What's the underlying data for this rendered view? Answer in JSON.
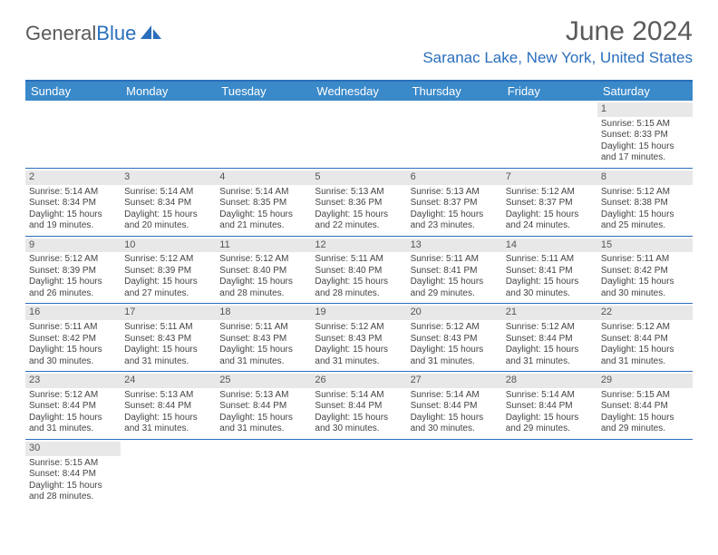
{
  "logo": {
    "part1": "General",
    "part2": "Blue"
  },
  "title": "June 2024",
  "location": "Saranac Lake, New York, United States",
  "weekdays": [
    "Sunday",
    "Monday",
    "Tuesday",
    "Wednesday",
    "Thursday",
    "Friday",
    "Saturday"
  ],
  "weeks": [
    [
      null,
      null,
      null,
      null,
      null,
      null,
      {
        "n": "1",
        "sr": "Sunrise: 5:15 AM",
        "ss": "Sunset: 8:33 PM",
        "d1": "Daylight: 15 hours",
        "d2": "and 17 minutes."
      }
    ],
    [
      {
        "n": "2",
        "sr": "Sunrise: 5:14 AM",
        "ss": "Sunset: 8:34 PM",
        "d1": "Daylight: 15 hours",
        "d2": "and 19 minutes."
      },
      {
        "n": "3",
        "sr": "Sunrise: 5:14 AM",
        "ss": "Sunset: 8:34 PM",
        "d1": "Daylight: 15 hours",
        "d2": "and 20 minutes."
      },
      {
        "n": "4",
        "sr": "Sunrise: 5:14 AM",
        "ss": "Sunset: 8:35 PM",
        "d1": "Daylight: 15 hours",
        "d2": "and 21 minutes."
      },
      {
        "n": "5",
        "sr": "Sunrise: 5:13 AM",
        "ss": "Sunset: 8:36 PM",
        "d1": "Daylight: 15 hours",
        "d2": "and 22 minutes."
      },
      {
        "n": "6",
        "sr": "Sunrise: 5:13 AM",
        "ss": "Sunset: 8:37 PM",
        "d1": "Daylight: 15 hours",
        "d2": "and 23 minutes."
      },
      {
        "n": "7",
        "sr": "Sunrise: 5:12 AM",
        "ss": "Sunset: 8:37 PM",
        "d1": "Daylight: 15 hours",
        "d2": "and 24 minutes."
      },
      {
        "n": "8",
        "sr": "Sunrise: 5:12 AM",
        "ss": "Sunset: 8:38 PM",
        "d1": "Daylight: 15 hours",
        "d2": "and 25 minutes."
      }
    ],
    [
      {
        "n": "9",
        "sr": "Sunrise: 5:12 AM",
        "ss": "Sunset: 8:39 PM",
        "d1": "Daylight: 15 hours",
        "d2": "and 26 minutes."
      },
      {
        "n": "10",
        "sr": "Sunrise: 5:12 AM",
        "ss": "Sunset: 8:39 PM",
        "d1": "Daylight: 15 hours",
        "d2": "and 27 minutes."
      },
      {
        "n": "11",
        "sr": "Sunrise: 5:12 AM",
        "ss": "Sunset: 8:40 PM",
        "d1": "Daylight: 15 hours",
        "d2": "and 28 minutes."
      },
      {
        "n": "12",
        "sr": "Sunrise: 5:11 AM",
        "ss": "Sunset: 8:40 PM",
        "d1": "Daylight: 15 hours",
        "d2": "and 28 minutes."
      },
      {
        "n": "13",
        "sr": "Sunrise: 5:11 AM",
        "ss": "Sunset: 8:41 PM",
        "d1": "Daylight: 15 hours",
        "d2": "and 29 minutes."
      },
      {
        "n": "14",
        "sr": "Sunrise: 5:11 AM",
        "ss": "Sunset: 8:41 PM",
        "d1": "Daylight: 15 hours",
        "d2": "and 30 minutes."
      },
      {
        "n": "15",
        "sr": "Sunrise: 5:11 AM",
        "ss": "Sunset: 8:42 PM",
        "d1": "Daylight: 15 hours",
        "d2": "and 30 minutes."
      }
    ],
    [
      {
        "n": "16",
        "sr": "Sunrise: 5:11 AM",
        "ss": "Sunset: 8:42 PM",
        "d1": "Daylight: 15 hours",
        "d2": "and 30 minutes."
      },
      {
        "n": "17",
        "sr": "Sunrise: 5:11 AM",
        "ss": "Sunset: 8:43 PM",
        "d1": "Daylight: 15 hours",
        "d2": "and 31 minutes."
      },
      {
        "n": "18",
        "sr": "Sunrise: 5:11 AM",
        "ss": "Sunset: 8:43 PM",
        "d1": "Daylight: 15 hours",
        "d2": "and 31 minutes."
      },
      {
        "n": "19",
        "sr": "Sunrise: 5:12 AM",
        "ss": "Sunset: 8:43 PM",
        "d1": "Daylight: 15 hours",
        "d2": "and 31 minutes."
      },
      {
        "n": "20",
        "sr": "Sunrise: 5:12 AM",
        "ss": "Sunset: 8:43 PM",
        "d1": "Daylight: 15 hours",
        "d2": "and 31 minutes."
      },
      {
        "n": "21",
        "sr": "Sunrise: 5:12 AM",
        "ss": "Sunset: 8:44 PM",
        "d1": "Daylight: 15 hours",
        "d2": "and 31 minutes."
      },
      {
        "n": "22",
        "sr": "Sunrise: 5:12 AM",
        "ss": "Sunset: 8:44 PM",
        "d1": "Daylight: 15 hours",
        "d2": "and 31 minutes."
      }
    ],
    [
      {
        "n": "23",
        "sr": "Sunrise: 5:12 AM",
        "ss": "Sunset: 8:44 PM",
        "d1": "Daylight: 15 hours",
        "d2": "and 31 minutes."
      },
      {
        "n": "24",
        "sr": "Sunrise: 5:13 AM",
        "ss": "Sunset: 8:44 PM",
        "d1": "Daylight: 15 hours",
        "d2": "and 31 minutes."
      },
      {
        "n": "25",
        "sr": "Sunrise: 5:13 AM",
        "ss": "Sunset: 8:44 PM",
        "d1": "Daylight: 15 hours",
        "d2": "and 31 minutes."
      },
      {
        "n": "26",
        "sr": "Sunrise: 5:14 AM",
        "ss": "Sunset: 8:44 PM",
        "d1": "Daylight: 15 hours",
        "d2": "and 30 minutes."
      },
      {
        "n": "27",
        "sr": "Sunrise: 5:14 AM",
        "ss": "Sunset: 8:44 PM",
        "d1": "Daylight: 15 hours",
        "d2": "and 30 minutes."
      },
      {
        "n": "28",
        "sr": "Sunrise: 5:14 AM",
        "ss": "Sunset: 8:44 PM",
        "d1": "Daylight: 15 hours",
        "d2": "and 29 minutes."
      },
      {
        "n": "29",
        "sr": "Sunrise: 5:15 AM",
        "ss": "Sunset: 8:44 PM",
        "d1": "Daylight: 15 hours",
        "d2": "and 29 minutes."
      }
    ],
    [
      {
        "n": "30",
        "sr": "Sunrise: 5:15 AM",
        "ss": "Sunset: 8:44 PM",
        "d1": "Daylight: 15 hours",
        "d2": "and 28 minutes."
      },
      null,
      null,
      null,
      null,
      null,
      null
    ]
  ],
  "colors": {
    "header_bg": "#3a89c9",
    "border": "#2a6ebb",
    "daynum_bg": "#e8e8e8",
    "title_color": "#5a5a5a",
    "location_color": "#2a6ebb"
  }
}
